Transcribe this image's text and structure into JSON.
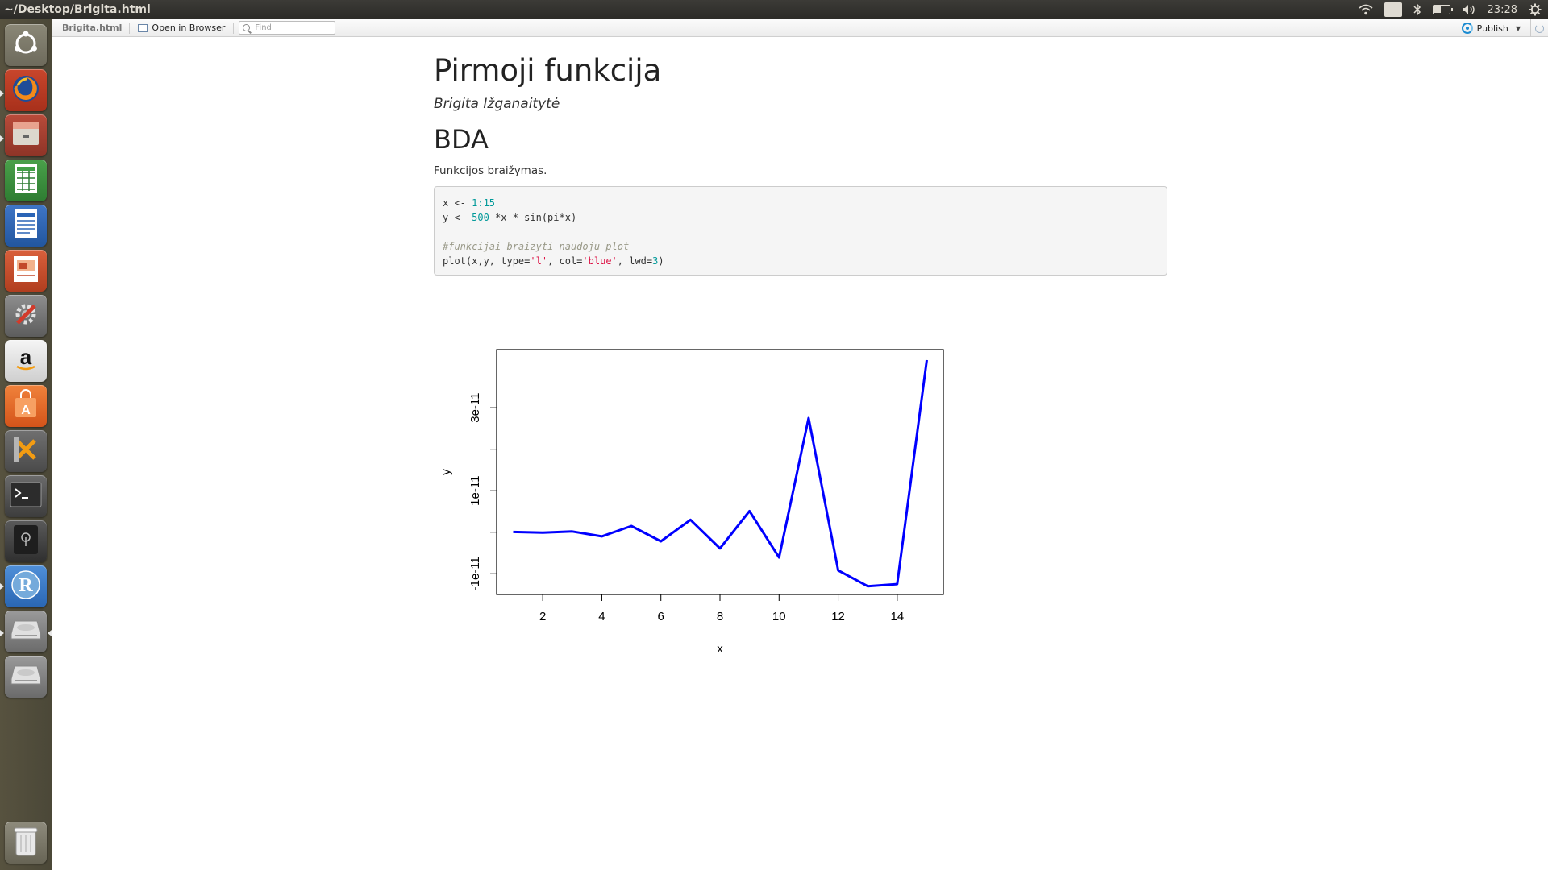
{
  "window": {
    "title": "~/Desktop/Brigita.html"
  },
  "tray": {
    "keyboard_layout": "Lt",
    "clock": "23:28",
    "battery_level": 0.45
  },
  "launcher": {
    "items": [
      {
        "name": "dash-home",
        "icon": "ubuntu-logo-icon"
      },
      {
        "name": "firefox",
        "icon": "firefox-icon"
      },
      {
        "name": "files",
        "icon": "file-cabinet-icon"
      },
      {
        "name": "calc",
        "icon": "spreadsheet-icon"
      },
      {
        "name": "writer",
        "icon": "document-icon"
      },
      {
        "name": "impress",
        "icon": "presentation-icon"
      },
      {
        "name": "system-settings",
        "icon": "wrench-gear-icon"
      },
      {
        "name": "amazon",
        "icon": "amazon-icon"
      },
      {
        "name": "software-center",
        "icon": "shopping-bag-icon"
      },
      {
        "name": "xmind",
        "icon": "x-tool-icon"
      },
      {
        "name": "terminal",
        "icon": "terminal-icon"
      },
      {
        "name": "disk",
        "icon": "drive-icon"
      },
      {
        "name": "rstudio",
        "icon": "r-logo-icon"
      },
      {
        "name": "drive-1",
        "icon": "hard-disk-icon"
      },
      {
        "name": "drive-2",
        "icon": "hard-disk-icon"
      },
      {
        "name": "trash",
        "icon": "trash-icon"
      }
    ]
  },
  "viewer": {
    "file_label": "Brigita.html",
    "open_in_browser": "Open in Browser",
    "find_placeholder": "Find",
    "publish": "Publish"
  },
  "document": {
    "title": "Pirmoji funkcija",
    "author": "Brigita Ižganaitytė",
    "section": "BDA",
    "paragraph": "Funkcijos braižymas."
  },
  "code": {
    "line1": {
      "a": "x <- ",
      "b": "1:15"
    },
    "line2": {
      "a": "y <- ",
      "b": "500",
      "c": " *x * sin(pi*x)"
    },
    "line4": "#funkcijai braizyti naudoju plot",
    "line5": {
      "a": "plot(x,y, type=",
      "b": "'l'",
      "c": ", col=",
      "d": "'blue'",
      "e": ", lwd=",
      "f": "3",
      "g": ")"
    }
  },
  "chart_data": {
    "type": "line",
    "x": [
      1,
      2,
      3,
      4,
      5,
      6,
      7,
      8,
      9,
      10,
      11,
      12,
      13,
      14,
      15
    ],
    "y": [
      6.1e-14,
      -1.2e-13,
      1.8e-13,
      -1e-12,
      1.5e-12,
      -2.2e-12,
      3e-12,
      -3.9e-12,
      5.1e-12,
      -6.1e-12,
      2.75e-11,
      -9.2e-12,
      -1.3e-11,
      -1.25e-11,
      4.15e-11
    ],
    "color": "#0000ff",
    "xlabel": "x",
    "ylabel": "y",
    "xlim": [
      0.44,
      15.56
    ],
    "ylim": [
      -1.5e-11,
      4.4e-11
    ],
    "xticks": [
      2,
      4,
      6,
      8,
      10,
      12,
      14
    ],
    "xtick_labels": [
      "2",
      "4",
      "6",
      "8",
      "10",
      "12",
      "14"
    ],
    "yticks": [
      -1e-11,
      0,
      1e-11,
      2e-11,
      3e-11
    ],
    "ytick_labels": [
      "-1e-11",
      "",
      "1e-11",
      "",
      "3e-11"
    ],
    "grid": false
  }
}
